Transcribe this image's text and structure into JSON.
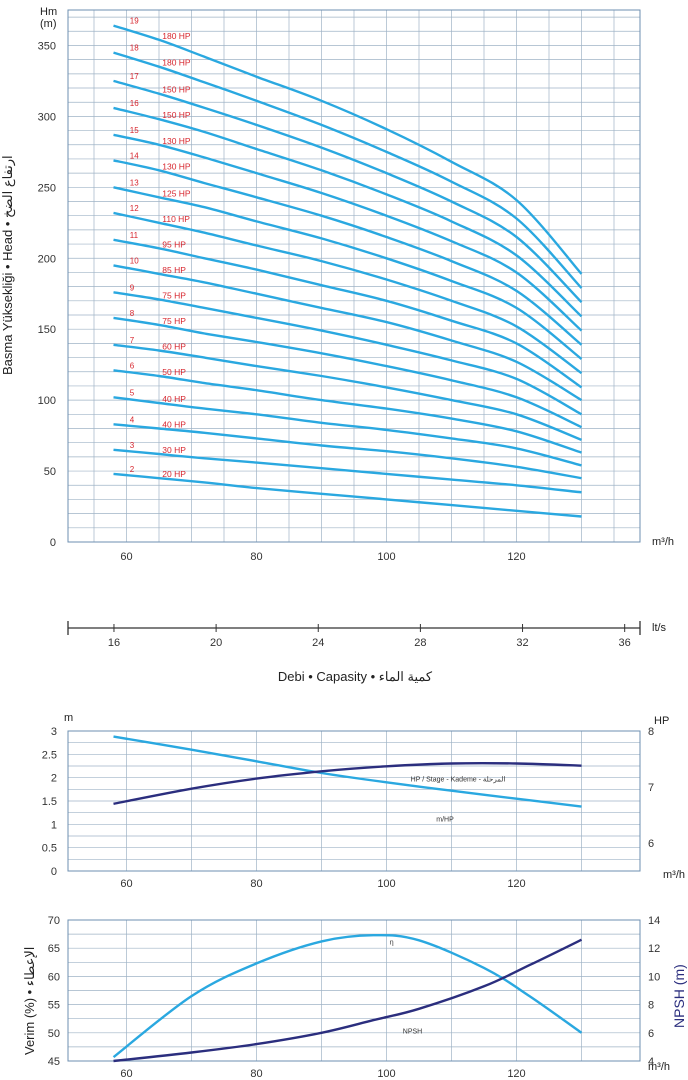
{
  "colors": {
    "curve": "#2aa8e0",
    "dark_curve": "#2b2e7e",
    "label_red": "#d7262e",
    "grid": "#9fb3c6",
    "frame": "#6d8fb0"
  },
  "main": {
    "y_unit_line1": "Hm",
    "y_unit_line2": "(m)",
    "y_axis_label": "Basma Yüksekliği • Head • ارتفاع الضخ",
    "x_unit": "m³/h",
    "flow_unit_lts": "lt/s",
    "x_caption": "Debi • Capasity • كمية الماء"
  },
  "chart_data": [
    {
      "type": "line",
      "ylabel": "Basma Yüksekliği • Head • ارتفاع الضخ",
      "yunit": "Hm (m)",
      "xunit": "m³/h",
      "xlim": [
        51,
        139
      ],
      "ylim": [
        0,
        375
      ],
      "xticks": [
        60,
        80,
        100,
        120
      ],
      "yticks": [
        0,
        50,
        100,
        150,
        200,
        250,
        300,
        350
      ],
      "x": [
        58,
        65,
        72,
        80,
        90,
        100,
        110,
        120,
        130
      ],
      "series": [
        {
          "stage": "2",
          "hp": "20 HP",
          "values": [
            48,
            45,
            42,
            38,
            34,
            30,
            26,
            22,
            18
          ]
        },
        {
          "stage": "3",
          "hp": "30 HP",
          "values": [
            65,
            62,
            59,
            56,
            52,
            48,
            44,
            40,
            35
          ]
        },
        {
          "stage": "4",
          "hp": "40 HP",
          "values": [
            83,
            80,
            77,
            73,
            68,
            64,
            59,
            53,
            45
          ]
        },
        {
          "stage": "5",
          "hp": "40 HP",
          "values": [
            102,
            98,
            94,
            90,
            84,
            79,
            73,
            66,
            54
          ]
        },
        {
          "stage": "6",
          "hp": "50 HP",
          "values": [
            121,
            117,
            112,
            107,
            100,
            94,
            87,
            78,
            63
          ]
        },
        {
          "stage": "7",
          "hp": "60 HP",
          "values": [
            139,
            135,
            130,
            124,
            117,
            109,
            100,
            90,
            72
          ]
        },
        {
          "stage": "8",
          "hp": "75 HP",
          "values": [
            158,
            153,
            147,
            141,
            133,
            124,
            114,
            102,
            81
          ]
        },
        {
          "stage": "9",
          "hp": "75 HP",
          "values": [
            176,
            171,
            165,
            158,
            149,
            139,
            128,
            115,
            90
          ]
        },
        {
          "stage": "10",
          "hp": "85 HP",
          "values": [
            195,
            189,
            183,
            175,
            165,
            155,
            142,
            127,
            100
          ]
        },
        {
          "stage": "11",
          "hp": "95 HP",
          "values": [
            213,
            207,
            200,
            192,
            181,
            170,
            156,
            140,
            109
          ]
        },
        {
          "stage": "12",
          "hp": "110 HP",
          "values": [
            232,
            225,
            218,
            209,
            198,
            185,
            170,
            152,
            119
          ]
        },
        {
          "stage": "13",
          "hp": "125 HP",
          "values": [
            250,
            243,
            236,
            226,
            214,
            200,
            184,
            165,
            129
          ]
        },
        {
          "stage": "14",
          "hp": "130 HP",
          "values": [
            269,
            262,
            253,
            243,
            230,
            215,
            198,
            177,
            139
          ]
        },
        {
          "stage": "15",
          "hp": "130 HP",
          "values": [
            287,
            280,
            271,
            260,
            246,
            230,
            212,
            190,
            149
          ]
        },
        {
          "stage": "16",
          "hp": "150 HP",
          "values": [
            306,
            298,
            289,
            277,
            262,
            245,
            226,
            202,
            159
          ]
        },
        {
          "stage": "17",
          "hp": "150 HP",
          "values": [
            325,
            316,
            306,
            294,
            278,
            260,
            240,
            215,
            169
          ]
        },
        {
          "stage": "18",
          "hp": "180 HP",
          "values": [
            345,
            335,
            324,
            311,
            294,
            275,
            254,
            228,
            179
          ]
        },
        {
          "stage": "19",
          "hp": "180 HP",
          "values": [
            364,
            354,
            342,
            328,
            311,
            291,
            268,
            241,
            189
          ]
        }
      ]
    },
    {
      "type": "axis",
      "unit": "lt/s",
      "xlim": [
        14.2,
        36.6
      ],
      "ticks": [
        16,
        20,
        24,
        28,
        32,
        36
      ]
    },
    {
      "type": "line",
      "yunit_left": "m",
      "yunit_right": "HP",
      "xunit": "m³/h",
      "xlim": [
        51,
        139
      ],
      "ylim_left": [
        0,
        3
      ],
      "ylim_right": [
        5.5,
        8
      ],
      "xticks": [
        60,
        80,
        100,
        120
      ],
      "yticks_left": [
        0,
        0.5,
        1,
        1.5,
        2,
        2.5,
        3
      ],
      "yticks_right": [
        6,
        7,
        8
      ],
      "x": [
        58,
        70,
        80,
        90,
        100,
        110,
        120,
        130
      ],
      "series": [
        {
          "name": "m/HP",
          "axis": "left",
          "color": "#2aa8e0",
          "values": [
            2.88,
            2.6,
            2.35,
            2.1,
            1.9,
            1.72,
            1.55,
            1.38
          ]
        },
        {
          "name": "HP / Stage - Kademe - المرحلة",
          "axis": "right",
          "color": "#2b2e7e",
          "values": [
            6.7,
            6.97,
            7.15,
            7.28,
            7.37,
            7.42,
            7.42,
            7.38
          ]
        }
      ]
    },
    {
      "type": "line",
      "ylabel_left": "Verim (%) • الإعطاء",
      "ylabel_right": "NPSH (m)",
      "yunit_right": "m",
      "xunit": "m³/h",
      "xlim": [
        51,
        139
      ],
      "ylim_left": [
        45,
        70
      ],
      "ylim_right": [
        4,
        14
      ],
      "xticks": [
        60,
        80,
        100,
        120
      ],
      "yticks_left": [
        45,
        50,
        55,
        60,
        65,
        70
      ],
      "yticks_right": [
        4,
        6,
        8,
        10,
        12,
        14
      ],
      "x": [
        58,
        70,
        80,
        90,
        98,
        105,
        115,
        122,
        130
      ],
      "series": [
        {
          "name": "η",
          "axis": "left",
          "color": "#2aa8e0",
          "values": [
            45.7,
            56.5,
            62.3,
            66.2,
            67.3,
            66.4,
            61.5,
            56.5,
            50.0
          ]
        },
        {
          "name": "NPSH",
          "axis": "right",
          "color": "#2b2e7e",
          "values": [
            4.0,
            4.6,
            5.2,
            6.0,
            6.9,
            7.7,
            9.3,
            10.8,
            12.6
          ]
        }
      ]
    }
  ]
}
